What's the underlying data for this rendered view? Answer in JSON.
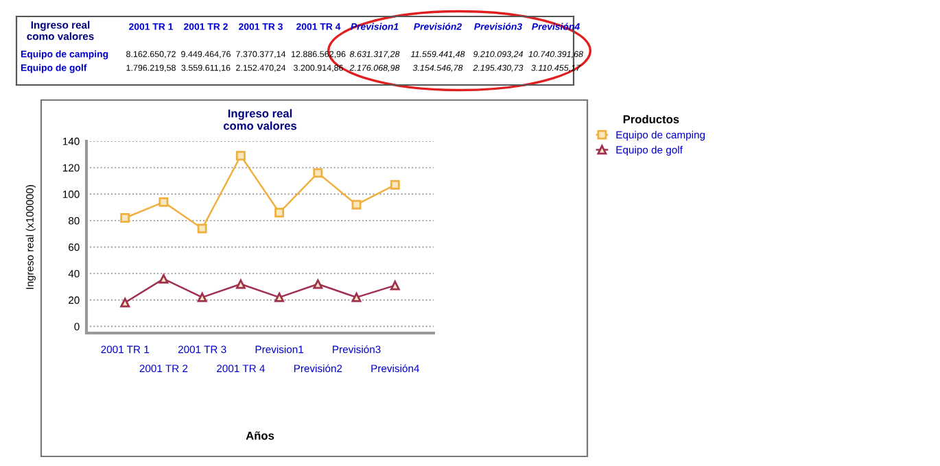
{
  "chart_data": [
    {
      "type": "other",
      "title": "Ingreso real\ncomo valores",
      "categories": [
        "2001 TR 1",
        "2001 TR 2",
        "2001 TR 3",
        "2001 TR 4",
        "Prevision1",
        "Previsión2",
        "Previsión3",
        "Previsión4"
      ],
      "y_categories": [
        "Equipo de camping",
        "Equipo de golf"
      ],
      "cell_labels": [
        [
          "8.162.650,72",
          "9.449.464,76",
          "7.370.377,14",
          "12.886.562,96",
          "8.631.317,28",
          "11.559.441,48",
          "9.210.093,24",
          "10.740.391,68"
        ],
        [
          "1.796.219,58",
          "3.559.611,16",
          "2.152.470,24",
          "3.200.914,86",
          "2.176.068,98",
          "3.154.546,78",
          "2.195.430,73",
          "3.110.455,17"
        ]
      ]
    },
    {
      "type": "line",
      "title": "Ingreso real\ncomo valores",
      "xlabel": "Años",
      "ylabel": "Ingreso real (x100000)",
      "legend_title": "Productos",
      "categories": [
        "2001 TR 1",
        "2001 TR 2",
        "2001 TR 3",
        "2001 TR 4",
        "Prevision1",
        "Previsión2",
        "Previsión3",
        "Previsión4"
      ],
      "series": [
        {
          "name": "Equipo de camping",
          "color": "#f0b040",
          "marker": "square",
          "values": [
            82,
            94,
            74,
            129,
            86,
            116,
            92,
            107
          ]
        },
        {
          "name": "Equipo de golf",
          "color": "#a03050",
          "marker": "triangle",
          "values": [
            18,
            36,
            22,
            32,
            22,
            32,
            22,
            31
          ]
        }
      ],
      "ylim": [
        -5,
        140
      ],
      "yticks": [
        0,
        20,
        40,
        60,
        80,
        100,
        120,
        140
      ],
      "grid": "y",
      "line_style": "solid",
      "legend": "top right"
    }
  ]
}
